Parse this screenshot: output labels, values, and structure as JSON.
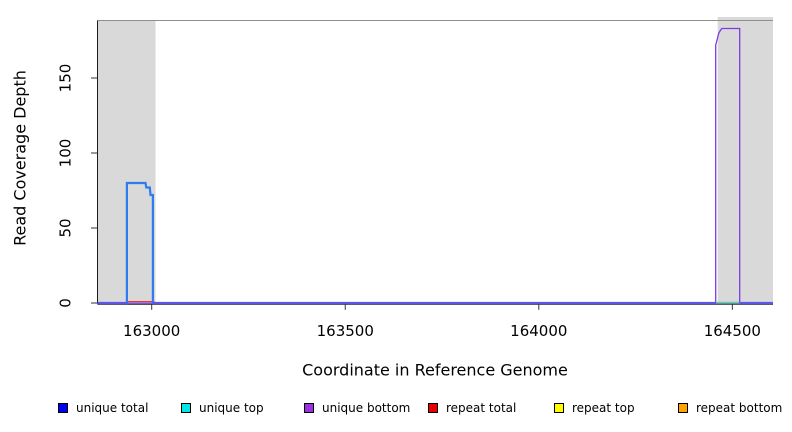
{
  "chart_data": {
    "type": "line",
    "title": "",
    "xlabel": "Coordinate in Reference Genome",
    "ylabel": "Read Coverage Depth",
    "xlim": [
      162860,
      164605
    ],
    "ylim": [
      0,
      188
    ],
    "x_ticks": [
      163000,
      163500,
      164000,
      164500
    ],
    "y_ticks": [
      0,
      50,
      100,
      150
    ],
    "grid": false,
    "legend_position": "bottom",
    "shaded_regions": [
      {
        "name": "shaded-region-left",
        "x0": 162860,
        "x1": 163010,
        "color": "#d9d9d9",
        "extends_above_box": false
      },
      {
        "name": "shaded-region-right",
        "x0": 164462,
        "x1": 164605,
        "color": "#d9d9d9",
        "extends_above_box": true
      }
    ],
    "series": [
      {
        "name": "repeat top",
        "color": "#f5e500",
        "width": 1,
        "points": [
          [
            162860,
            0
          ],
          [
            164605,
            0
          ]
        ]
      },
      {
        "name": "repeat bottom",
        "color": "#ffa200",
        "width": 1,
        "points": [
          [
            162860,
            0
          ],
          [
            164605,
            0
          ]
        ]
      },
      {
        "name": "unique top",
        "color": "#00cccc",
        "width": 1,
        "points": [
          [
            162860,
            0
          ],
          [
            164605,
            0
          ]
        ]
      },
      {
        "name": "repeat total",
        "color": "#f23333",
        "width": 1,
        "points": [
          [
            162860,
            0
          ],
          [
            162936,
            0
          ],
          [
            162936,
            1
          ],
          [
            163006,
            1
          ],
          [
            163006,
            0
          ],
          [
            164605,
            0
          ]
        ]
      },
      {
        "name": "unique total",
        "color": "#2e7cf0",
        "width": 2.2,
        "points": [
          [
            162860,
            0
          ],
          [
            162936,
            0
          ],
          [
            162936,
            80
          ],
          [
            162984,
            80
          ],
          [
            162986,
            77
          ],
          [
            162995,
            77
          ],
          [
            162997,
            72
          ],
          [
            163003,
            72
          ],
          [
            163003,
            0
          ],
          [
            164605,
            0
          ]
        ]
      },
      {
        "name": "unique bottom",
        "color": "#7b3ce2",
        "width": 1.3,
        "points": [
          [
            162860,
            0
          ],
          [
            164457,
            0
          ],
          [
            164457,
            172
          ],
          [
            164461,
            176
          ],
          [
            164465,
            180
          ],
          [
            164470,
            182
          ],
          [
            164473,
            183
          ],
          [
            164519,
            183
          ],
          [
            164519,
            0
          ],
          [
            164605,
            0
          ]
        ]
      }
    ],
    "overlay_segments": [
      {
        "name": "overlap-green-segment",
        "x0": 164458,
        "x1": 164518,
        "color": "#7ccf6e"
      }
    ]
  },
  "legend": {
    "items": [
      {
        "label": "unique total",
        "color": "#0000f0"
      },
      {
        "label": "unique top",
        "color": "#00e6e6"
      },
      {
        "label": "unique bottom",
        "color": "#9b30e0"
      },
      {
        "label": "repeat total",
        "color": "#e80000"
      },
      {
        "label": "repeat top",
        "color": "#ffff00"
      },
      {
        "label": "repeat bottom",
        "color": "#ffa200"
      }
    ]
  }
}
